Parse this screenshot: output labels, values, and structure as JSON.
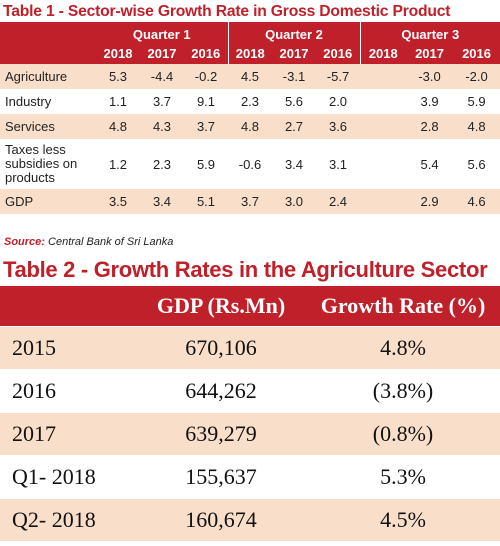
{
  "table1": {
    "title": "Table 1 - Sector-wise Growth Rate in Gross Domestic Product",
    "quarters": [
      "Quarter 1",
      "Quarter 2",
      "Quarter 3"
    ],
    "years": [
      "2018",
      "2017",
      "2016",
      "2018",
      "2017",
      "2016",
      "2018",
      "2017",
      "2016"
    ],
    "rows": [
      {
        "label": "Agriculture",
        "values": [
          "5.3",
          "-4.4",
          "-0.2",
          "4.5",
          "-3.1",
          "-5.7",
          "",
          "-3.0",
          "-2.0"
        ]
      },
      {
        "label": "Industry",
        "values": [
          "1.1",
          "3.7",
          "9.1",
          "2.3",
          "5.6",
          "2.0",
          "",
          "3.9",
          "5.9"
        ]
      },
      {
        "label": "Services",
        "values": [
          "4.8",
          "4.3",
          "3.7",
          "4.8",
          "2.7",
          "3.6",
          "",
          "2.8",
          "4.8"
        ]
      },
      {
        "label": "Taxes less subsidies on products",
        "values": [
          "1.2",
          "2.3",
          "5.9",
          "-0.6",
          "3.4",
          "3.1",
          "",
          "5.4",
          "5.6"
        ]
      },
      {
        "label": "GDP",
        "values": [
          "3.5",
          "3.4",
          "5.1",
          "3.7",
          "3.0",
          "2.4",
          "",
          "2.9",
          "4.6"
        ]
      }
    ],
    "source_label": "Source:",
    "source_text": "Central Bank of Sri Lanka"
  },
  "table2": {
    "title": "Table 2 - Growth Rates in the Agriculture Sector",
    "headers": [
      "",
      "GDP (Rs.Mn)",
      "Growth Rate (%)"
    ],
    "rows": [
      {
        "period": "2015",
        "gdp": "670,106",
        "rate": "4.8%"
      },
      {
        "period": "2016",
        "gdp": "644,262",
        "rate": "(3.8%)"
      },
      {
        "period": "2017",
        "gdp": "639,279",
        "rate": "(0.8%)"
      },
      {
        "period": "Q1- 2018",
        "gdp": "155,637",
        "rate": "5.3%"
      },
      {
        "period": "Q2- 2018",
        "gdp": "160,674",
        "rate": "4.5%"
      }
    ]
  },
  "colors": {
    "accent": "#c0202a",
    "row_tint": "#f9dfc9",
    "background": "#ffffff"
  }
}
